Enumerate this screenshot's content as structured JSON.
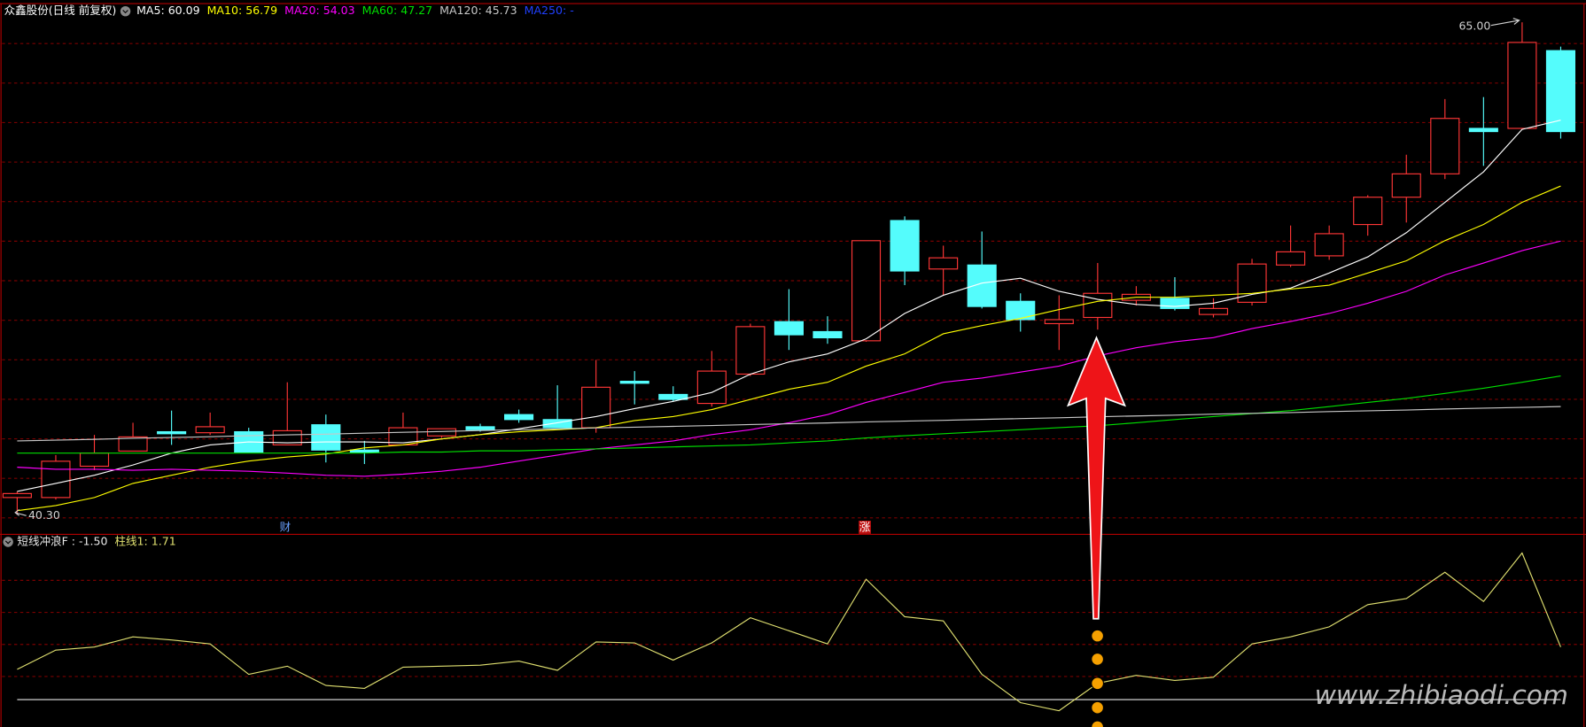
{
  "chart_data": [
    {
      "type": "candlestick",
      "title": "众鑫股份(日线 前复权)",
      "open": [
        41.17,
        41.17,
        42.74,
        43.5,
        44.47,
        44.42,
        44.47,
        43.81,
        44.82,
        43.55,
        43.81,
        44.26,
        44.72,
        45.33,
        45.08,
        44.67,
        47.0,
        46.34,
        45.89,
        47.36,
        49.99,
        49.49,
        49.03,
        55.06,
        52.63,
        52.83,
        51.01,
        49.89,
        50.2,
        51.06,
        51.16,
        50.35,
        50.96,
        52.83,
        53.29,
        54.86,
        56.23,
        57.4,
        59.68,
        59.68,
        63.58
      ],
      "high": [
        41.47,
        43.3,
        44.31,
        44.92,
        45.53,
        45.43,
        44.67,
        46.95,
        45.33,
        44.01,
        45.43,
        44.62,
        44.87,
        45.58,
        46.8,
        48.07,
        47.51,
        46.75,
        48.52,
        49.89,
        51.62,
        50.26,
        54.05,
        55.27,
        53.8,
        54.51,
        51.41,
        51.31,
        52.93,
        51.77,
        52.22,
        51.16,
        53.14,
        54.81,
        54.81,
        56.33,
        58.36,
        61.15,
        61.25,
        65.0,
        63.78
      ],
      "low": [
        40.3,
        41.07,
        42.54,
        43.5,
        43.81,
        44.31,
        43.45,
        43.81,
        42.93,
        42.85,
        43.81,
        44.16,
        44.47,
        44.92,
        44.67,
        44.42,
        45.84,
        45.99,
        45.73,
        47.26,
        48.57,
        48.88,
        48.98,
        51.82,
        51.31,
        50.65,
        49.49,
        48.57,
        49.59,
        50.8,
        50.55,
        50.2,
        50.8,
        52.73,
        53.09,
        54.3,
        54.96,
        57.14,
        57.8,
        59.63,
        59.17
      ],
      "close": [
        41.37,
        42.99,
        43.4,
        44.21,
        44.37,
        44.72,
        43.45,
        44.52,
        43.55,
        43.45,
        44.67,
        44.62,
        44.57,
        45.08,
        44.67,
        46.7,
        46.9,
        46.09,
        47.51,
        49.74,
        49.33,
        49.18,
        54.05,
        52.53,
        53.19,
        50.75,
        50.09,
        50.09,
        51.41,
        51.36,
        50.65,
        50.65,
        52.88,
        53.49,
        54.4,
        56.23,
        57.4,
        60.18,
        59.52,
        63.99,
        59.52
      ],
      "ylim": [
        39.35,
        65.86
      ],
      "up_color": "#ff3636",
      "down_color": "#54fcfc",
      "high_label": "65.00",
      "low_label": "40.30",
      "annotations": [
        "财",
        "涨"
      ],
      "series": [
        {
          "name": "MA5: 60.09",
          "color": "#ffffff",
          "values": [
            41.48,
            41.88,
            42.29,
            42.8,
            43.4,
            43.81,
            43.96,
            43.91,
            43.96,
            43.96,
            43.91,
            44.11,
            44.32,
            44.62,
            44.92,
            45.23,
            45.63,
            45.99,
            46.44,
            47.36,
            47.97,
            48.37,
            49.13,
            50.4,
            51.31,
            51.92,
            52.17,
            51.51,
            51.11,
            50.85,
            50.75,
            50.91,
            51.36,
            51.67,
            52.43,
            53.24,
            54.45,
            55.97,
            57.5,
            59.63,
            60.09
          ]
        },
        {
          "name": "MA10: 56.79",
          "color": "#ffff00",
          "values": [
            40.51,
            40.77,
            41.17,
            41.88,
            42.29,
            42.69,
            43.0,
            43.2,
            43.35,
            43.66,
            43.81,
            44.11,
            44.32,
            44.47,
            44.57,
            44.67,
            45.03,
            45.23,
            45.58,
            46.09,
            46.6,
            46.95,
            47.76,
            48.37,
            49.38,
            49.79,
            50.15,
            50.6,
            51.01,
            51.21,
            51.21,
            51.31,
            51.41,
            51.62,
            51.82,
            52.43,
            53.04,
            54.05,
            54.86,
            55.97,
            56.79
          ]
        },
        {
          "name": "MA20: 54.03",
          "color": "#ff00ff",
          "values": [
            42.69,
            42.59,
            42.59,
            42.54,
            42.59,
            42.54,
            42.49,
            42.39,
            42.29,
            42.24,
            42.34,
            42.49,
            42.69,
            43.0,
            43.3,
            43.61,
            43.81,
            44.01,
            44.32,
            44.57,
            44.92,
            45.33,
            45.94,
            46.44,
            46.95,
            47.16,
            47.46,
            47.76,
            48.27,
            48.68,
            48.98,
            49.19,
            49.64,
            50.0,
            50.4,
            50.91,
            51.51,
            52.33,
            52.93,
            53.55,
            54.03
          ]
        },
        {
          "name": "MA60: 47.27",
          "color": "#00e000",
          "values": [
            43.4,
            43.4,
            43.4,
            43.4,
            43.4,
            43.4,
            43.4,
            43.4,
            43.4,
            43.4,
            43.45,
            43.45,
            43.51,
            43.51,
            43.56,
            43.61,
            43.66,
            43.71,
            43.76,
            43.81,
            43.91,
            44.01,
            44.16,
            44.27,
            44.37,
            44.47,
            44.57,
            44.67,
            44.77,
            44.92,
            45.08,
            45.23,
            45.38,
            45.53,
            45.73,
            45.94,
            46.14,
            46.39,
            46.65,
            46.95,
            47.27
          ]
        },
        {
          "name": "MA120: 45.73",
          "color": "#c8c8c8",
          "values": [
            44.01,
            44.05,
            44.09,
            44.14,
            44.18,
            44.22,
            44.27,
            44.31,
            44.35,
            44.4,
            44.44,
            44.48,
            44.53,
            44.57,
            44.61,
            44.66,
            44.7,
            44.74,
            44.78,
            44.83,
            44.87,
            44.91,
            44.96,
            45.0,
            45.04,
            45.09,
            45.13,
            45.17,
            45.22,
            45.26,
            45.3,
            45.35,
            45.39,
            45.43,
            45.48,
            45.52,
            45.56,
            45.61,
            45.65,
            45.69,
            45.73
          ]
        },
        {
          "name": "MA250: -",
          "color": "#2040ff",
          "values": [
            null,
            null,
            null,
            null,
            null,
            null,
            null,
            null,
            null,
            null,
            null,
            null,
            null,
            null,
            null,
            null,
            null,
            null,
            null,
            null,
            null,
            null,
            null,
            null,
            null,
            null,
            null,
            null,
            null,
            null,
            null,
            null,
            null,
            null,
            null,
            null,
            null,
            null,
            null,
            null,
            null
          ]
        }
      ]
    },
    {
      "type": "line",
      "ylim": [
        -3.17,
        8.5
      ],
      "series": [
        {
          "name": "短线冲浪F : -1.50",
          "color": "#e8e8e8",
          "values": [
            -1.5,
            -1.5,
            -1.5,
            -1.5,
            -1.5,
            -1.5,
            -1.5,
            -1.5,
            -1.5,
            -1.5,
            -1.5,
            -1.5,
            -1.5,
            -1.5,
            -1.5,
            -1.5,
            -1.5,
            -1.5,
            -1.5,
            -1.5,
            -1.5,
            -1.5,
            -1.5,
            -1.5,
            -1.5,
            -1.5,
            -1.5,
            -1.5,
            -1.5,
            -1.5,
            -1.5,
            -1.5,
            -1.5,
            -1.5,
            -1.5,
            -1.5,
            -1.5,
            -1.5,
            -1.5,
            -1.5,
            -1.5
          ]
        },
        {
          "name": "柱线1: 1.71",
          "color": "#e0e070",
          "values": [
            0.35,
            1.52,
            1.71,
            2.33,
            2.14,
            1.9,
            0.04,
            0.54,
            -0.64,
            -0.82,
            0.48,
            0.54,
            0.6,
            0.85,
            0.29,
            2.02,
            1.96,
            0.91,
            1.96,
            3.5,
            2.7,
            1.9,
            5.85,
            3.56,
            3.31,
            0.04,
            -1.69,
            -2.18,
            -0.51,
            -0.02,
            -0.33,
            -0.14,
            1.9,
            2.33,
            2.94,
            4.3,
            4.67,
            6.28,
            4.49,
            7.45,
            1.71
          ]
        }
      ]
    }
  ],
  "watermark": "www.zhibiaodi.com"
}
